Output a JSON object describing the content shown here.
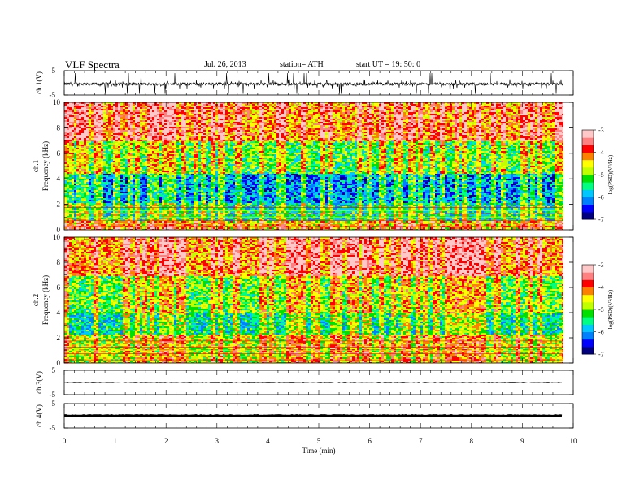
{
  "header": {
    "title": "VLF  Spectra",
    "date": "Jul.  26, 2013",
    "station": "station= ATH",
    "start": "start  UT  =   19: 50: 0"
  },
  "chart_data": [
    {
      "type": "line",
      "panel": "ch1-waveform",
      "ylabel": "ch.1(V)",
      "ylim": [
        -5,
        5
      ],
      "yticks": [
        "5",
        "-5"
      ],
      "xlim": [
        0,
        9.8
      ],
      "series_color": "#000000",
      "approx_level": -0.5,
      "approx_spread": [
        -2.5,
        1.5
      ]
    },
    {
      "type": "heatmap",
      "panel": "ch1-spectrogram",
      "ylabel_line1": "ch.1",
      "ylabel_line2": "Frequency  (kHz)",
      "ylim": [
        0,
        10
      ],
      "yticks": [
        0,
        2,
        4,
        6,
        8,
        10
      ],
      "xlim": [
        0,
        9.8
      ],
      "colorscale": "log(PSD)",
      "dominant_by_frequency_kHz": [
        {
          "band": [
            0,
            0.8
          ],
          "level": -4.5
        },
        {
          "band": [
            0.8,
            2.2
          ],
          "level": -5.6
        },
        {
          "band": [
            2.2,
            4.5
          ],
          "level": -6.1
        },
        {
          "band": [
            4.5,
            7.0
          ],
          "level": -5.2
        },
        {
          "band": [
            7.0,
            10
          ],
          "level": -4.2
        }
      ]
    },
    {
      "type": "heatmap",
      "panel": "ch2-spectrogram",
      "ylabel_line1": "ch.2",
      "ylabel_line2": "Frequency  (kHz)",
      "ylim": [
        0,
        10
      ],
      "yticks": [
        0,
        2,
        4,
        6,
        8,
        10
      ],
      "xlim": [
        0,
        9.8
      ],
      "colorscale": "log(PSD)",
      "dominant_by_frequency_kHz": [
        {
          "band": [
            0,
            2.3
          ],
          "level": -4.8
        },
        {
          "band": [
            2.3,
            4.0
          ],
          "level": -5.6
        },
        {
          "band": [
            4.0,
            7.0
          ],
          "level": -5.1
        },
        {
          "band": [
            7.0,
            10
          ],
          "level": -4.2
        }
      ]
    },
    {
      "type": "line",
      "panel": "ch3-waveform",
      "ylabel": "ch.3(V)",
      "ylim": [
        -5,
        5
      ],
      "yticks": [
        "5",
        "-5"
      ],
      "xlim": [
        0,
        9.8
      ],
      "approx_level": 0
    },
    {
      "type": "line",
      "panel": "ch4-waveform",
      "ylabel": "ch.4(V)",
      "ylim": [
        -5,
        5
      ],
      "yticks": [
        "5",
        "-5"
      ],
      "xlim": [
        0,
        9.8
      ],
      "approx_level": 0
    }
  ],
  "colorbar": {
    "label": "log(PSD)(V²/Hz)",
    "range": [
      -7,
      -3
    ],
    "ticks": [
      "-3",
      "-4",
      "-5",
      "-6",
      "-7"
    ],
    "colors": [
      "#000080",
      "#0000ff",
      "#0080ff",
      "#00c8ff",
      "#00ff80",
      "#00e000",
      "#c0ff00",
      "#ffff00",
      "#ff8000",
      "#ff0000",
      "#ff8080",
      "#ffc8c8"
    ]
  },
  "x_axis": {
    "label": "Time  (min)",
    "range": [
      0,
      10
    ],
    "ticks": [
      "0",
      "1",
      "2",
      "3",
      "4",
      "5",
      "6",
      "7",
      "8",
      "9",
      "10"
    ]
  }
}
